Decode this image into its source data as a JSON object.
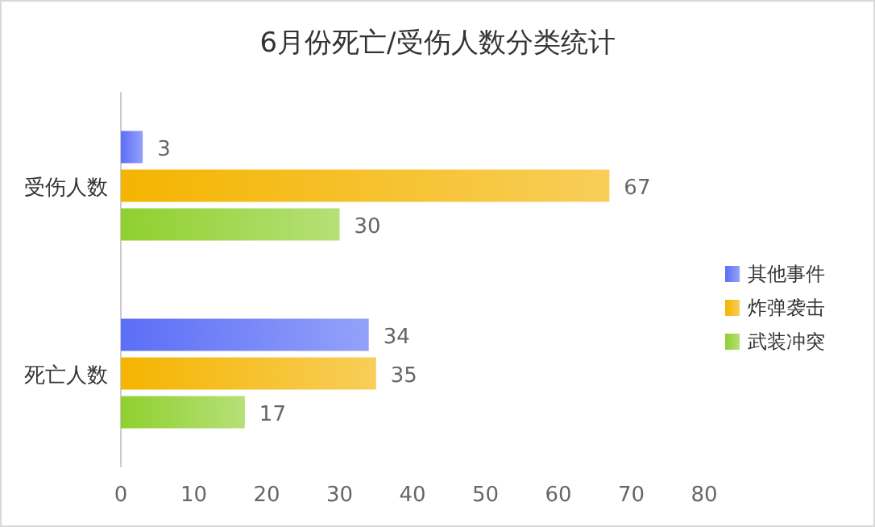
{
  "chart_data": {
    "type": "bar",
    "orientation": "horizontal",
    "title": "6月份死亡/受伤人数分类统计",
    "categories": [
      "受伤人数",
      "死亡人数"
    ],
    "series": [
      {
        "name": "其他事件",
        "color": "#5b6ef7",
        "values": [
          3,
          34
        ]
      },
      {
        "name": "炸弹袭击",
        "color": "#f4b400",
        "values": [
          67,
          35
        ]
      },
      {
        "name": "武装冲突",
        "color": "#8fd02e",
        "values": [
          30,
          17
        ]
      }
    ],
    "xlim": [
      0,
      80
    ],
    "xticks": [
      0,
      10,
      20,
      30,
      40,
      50,
      60,
      70,
      80
    ],
    "grid": false,
    "legend": "right",
    "data_labels": true
  }
}
